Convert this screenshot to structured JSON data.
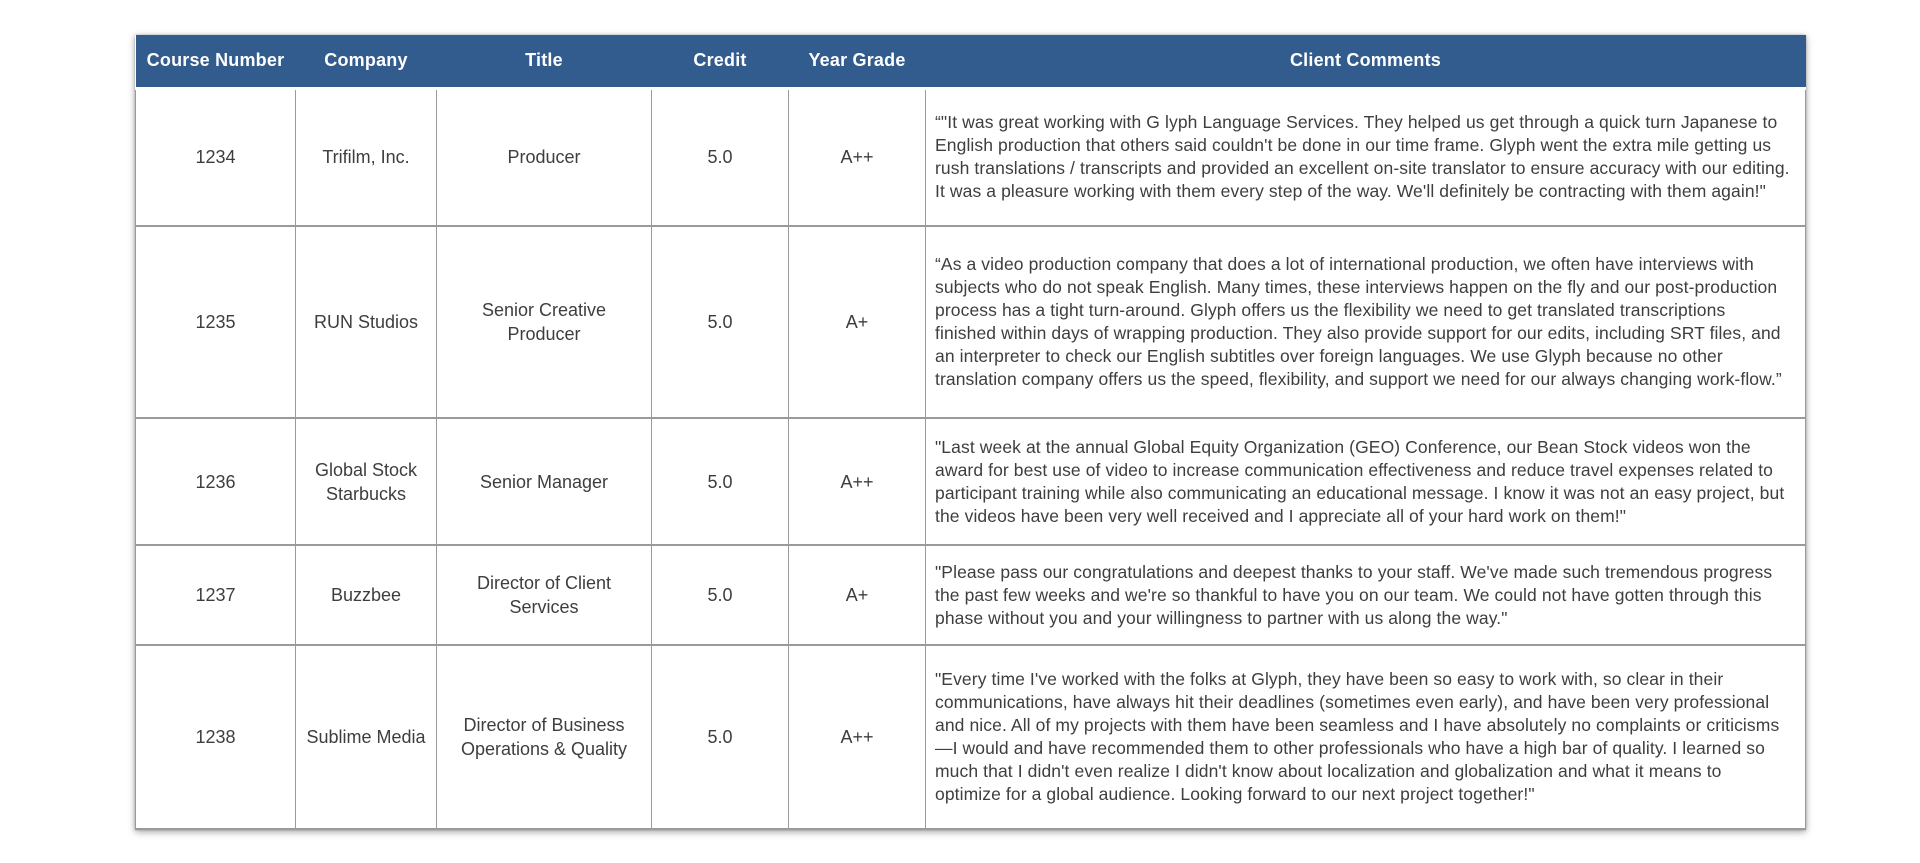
{
  "table": {
    "columns": [
      {
        "id": "course_number",
        "label": "Course Number"
      },
      {
        "id": "company",
        "label": "Company"
      },
      {
        "id": "title",
        "label": "Title"
      },
      {
        "id": "credit",
        "label": "Credit"
      },
      {
        "id": "year_grade",
        "label": "Year Grade"
      },
      {
        "id": "client_comments",
        "label": "Client Comments"
      }
    ],
    "rows": [
      {
        "course_number": "1234",
        "company": "Trifilm, Inc.",
        "title": "Producer",
        "credit": "5.0",
        "year_grade": "A++",
        "client_comments": "“\"It was great working with G lyph Language Services.  They helped us get through a quick turn Japanese to English production that others said couldn't be done in our time frame. Glyph went the extra mile getting us rush translations / transcripts and provided an excellent on-site translator to ensure accuracy with our editing.  It was a pleasure working with them every step of the way.  We'll definitely be contracting with them again!\""
      },
      {
        "course_number": "1235",
        "company": "RUN Studios",
        "title": "Senior Creative Producer",
        "credit": "5.0",
        "year_grade": "A+",
        "client_comments": "“As a video production company that does a lot of international production, we often have interviews with subjects who do not speak English. Many times, these interviews happen on the fly and our post-production process has a tight turn-around. Glyph offers us the flexibility we need to get translated transcriptions finished within days of wrapping production. They also provide support for our edits, including SRT files, and an interpreter to check our English subtitles over foreign languages. We use Glyph because no other translation company offers us the speed, flexibility, and support we need for our always changing work-flow.”"
      },
      {
        "course_number": "1236",
        "company": "Global Stock Starbucks",
        "title": "Senior Manager",
        "credit": "5.0",
        "year_grade": "A++",
        "client_comments": "\"Last week at the annual Global Equity Organization (GEO) Conference, our Bean Stock videos won the award for best use of video to increase communication effectiveness and reduce travel expenses related to participant training while also communicating an educational message. I know it was not an easy project, but the videos have been very well received and I appreciate all of your hard work on them!\""
      },
      {
        "course_number": "1237",
        "company": "Buzzbee",
        "title": "Director of Client Services",
        "credit": "5.0",
        "year_grade": "A+",
        "client_comments": "\"Please pass our congratulations and deepest thanks to your staff. We've made such tremendous progress the past few weeks and we're so thankful to have you on our team. We could not have gotten through this phase without you and your willingness to partner with us along the way.\""
      },
      {
        "course_number": "1238",
        "company": "Sublime Media",
        "title": "Director of Business Operations & Quality",
        "credit": "5.0",
        "year_grade": "A++",
        "client_comments": "\"Every time I've worked with the folks at Glyph, they have been so easy to work with, so clear in their communications, have always hit their deadlines (sometimes even early), and have been very professional and nice. All of my projects with them have been seamless and I have absolutely no complaints or criticisms—I would and have recommended them to other professionals who have a high bar of quality. I learned so much that I didn't even realize I didn't know about localization and globalization and what it means to optimize for a global audience. Looking forward to our next project together!\""
      }
    ]
  },
  "colors": {
    "header_bg": "#315C8D",
    "header_text": "#FFFFFF",
    "body_text": "#3E3E3E",
    "grid_line": "#9A9A9A"
  }
}
